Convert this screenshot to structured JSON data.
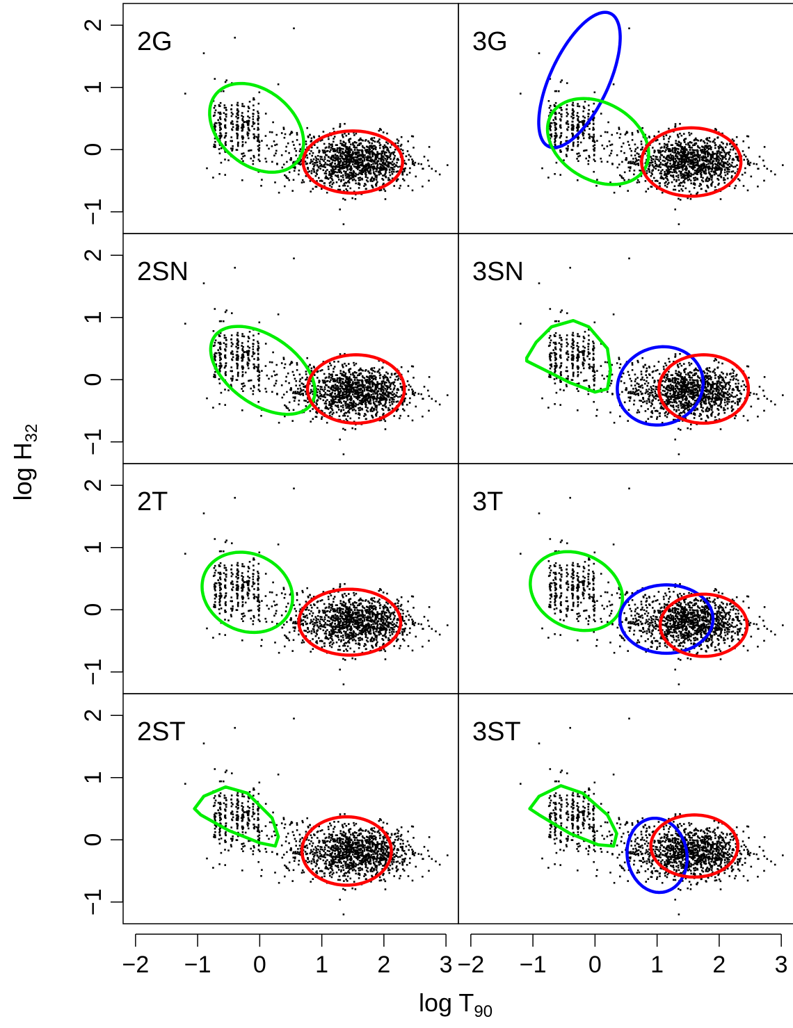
{
  "chart_data": {
    "type": "scatter",
    "title": "",
    "xlabel": {
      "main": "log T",
      "sub": "90"
    },
    "ylabel": {
      "main": "log H",
      "sub": "32"
    },
    "xlim": [
      -2.2,
      3.2
    ],
    "ylim": [
      -1.35,
      2.35
    ],
    "xticks": [
      -2,
      -1,
      0,
      1,
      2,
      3
    ],
    "yticks": [
      -1,
      0,
      1,
      2
    ],
    "xtick_labels": [
      "−2",
      "−1",
      "0",
      "1",
      "2",
      "3"
    ],
    "ytick_labels": [
      "−1",
      "0",
      "1",
      "2"
    ],
    "grid": false,
    "legend": "none",
    "colors": {
      "red": "#ff0000",
      "green": "#00ee00",
      "blue": "#0000ff",
      "points": "#000000"
    },
    "panels": [
      {
        "label": "2G",
        "col": 0,
        "row": 0,
        "components": [
          {
            "color": "green",
            "shape": "ellipse",
            "center": [
              -0.05,
              0.35
            ],
            "rx": 0.85,
            "ry": 0.6,
            "angle_deg": -40
          },
          {
            "color": "red",
            "shape": "ellipse",
            "center": [
              1.5,
              -0.2
            ],
            "rx": 0.8,
            "ry": 0.5,
            "angle_deg": 0
          }
        ]
      },
      {
        "label": "3G",
        "col": 1,
        "row": 0,
        "components": [
          {
            "color": "blue",
            "shape": "ellipse",
            "center": [
              -0.25,
              1.12
            ],
            "rx": 0.47,
            "ry": 1.18,
            "angle_deg": -25
          },
          {
            "color": "green",
            "shape": "ellipse",
            "center": [
              0.05,
              0.13
            ],
            "rx": 0.87,
            "ry": 0.62,
            "angle_deg": -30
          },
          {
            "color": "red",
            "shape": "ellipse",
            "center": [
              1.55,
              -0.2
            ],
            "rx": 0.8,
            "ry": 0.55,
            "angle_deg": 0
          }
        ]
      },
      {
        "label": "2SN",
        "col": 0,
        "row": 1,
        "components": [
          {
            "color": "green",
            "shape": "ellipse",
            "center": [
              0.05,
              0.15
            ],
            "rx": 0.95,
            "ry": 0.55,
            "angle_deg": -35
          },
          {
            "color": "red",
            "shape": "ellipse",
            "center": [
              1.55,
              -0.15
            ],
            "rx": 0.78,
            "ry": 0.55,
            "angle_deg": 0
          }
        ]
      },
      {
        "label": "3SN",
        "col": 1,
        "row": 1,
        "components": [
          {
            "color": "green",
            "shape": "path",
            "points": [
              [
                -1.1,
                0.35
              ],
              [
                -0.95,
                0.6
              ],
              [
                -0.7,
                0.85
              ],
              [
                -0.35,
                0.95
              ],
              [
                -0.1,
                0.85
              ],
              [
                0.2,
                0.5
              ],
              [
                0.25,
                0.15
              ],
              [
                0.2,
                -0.15
              ],
              [
                0.0,
                -0.2
              ],
              [
                -0.4,
                -0.05
              ],
              [
                -0.8,
                0.15
              ],
              [
                -1.1,
                0.3
              ]
            ]
          },
          {
            "color": "blue",
            "shape": "ellipse",
            "center": [
              1.05,
              -0.1
            ],
            "rx": 0.7,
            "ry": 0.62,
            "angle_deg": 20
          },
          {
            "color": "red",
            "shape": "ellipse",
            "center": [
              1.75,
              -0.15
            ],
            "rx": 0.72,
            "ry": 0.55,
            "angle_deg": 0
          }
        ]
      },
      {
        "label": "2T",
        "col": 0,
        "row": 2,
        "components": [
          {
            "color": "green",
            "shape": "ellipse",
            "center": [
              -0.2,
              0.28
            ],
            "rx": 0.75,
            "ry": 0.62,
            "angle_deg": -25
          },
          {
            "color": "red",
            "shape": "ellipse",
            "center": [
              1.45,
              -0.2
            ],
            "rx": 0.82,
            "ry": 0.53,
            "angle_deg": 0
          }
        ]
      },
      {
        "label": "3T",
        "col": 1,
        "row": 2,
        "components": [
          {
            "color": "green",
            "shape": "ellipse",
            "center": [
              -0.3,
              0.3
            ],
            "rx": 0.77,
            "ry": 0.6,
            "angle_deg": -25
          },
          {
            "color": "blue",
            "shape": "ellipse",
            "center": [
              1.15,
              -0.15
            ],
            "rx": 0.75,
            "ry": 0.55,
            "angle_deg": 0
          },
          {
            "color": "red",
            "shape": "ellipse",
            "center": [
              1.75,
              -0.25
            ],
            "rx": 0.7,
            "ry": 0.5,
            "angle_deg": 0
          }
        ]
      },
      {
        "label": "2ST",
        "col": 0,
        "row": 3,
        "components": [
          {
            "color": "green",
            "shape": "path",
            "points": [
              [
                -1.05,
                0.5
              ],
              [
                -0.9,
                0.7
              ],
              [
                -0.55,
                0.85
              ],
              [
                -0.2,
                0.75
              ],
              [
                0.2,
                0.35
              ],
              [
                0.3,
                0.05
              ],
              [
                0.25,
                -0.1
              ],
              [
                0.0,
                -0.05
              ],
              [
                -0.5,
                0.15
              ],
              [
                -0.95,
                0.4
              ],
              [
                -1.05,
                0.5
              ]
            ]
          },
          {
            "color": "red",
            "shape": "ellipse",
            "center": [
              1.4,
              -0.18
            ],
            "rx": 0.72,
            "ry": 0.55,
            "angle_deg": 0
          }
        ]
      },
      {
        "label": "3ST",
        "col": 1,
        "row": 3,
        "components": [
          {
            "color": "green",
            "shape": "path",
            "points": [
              [
                -1.05,
                0.5
              ],
              [
                -0.9,
                0.7
              ],
              [
                -0.55,
                0.87
              ],
              [
                -0.2,
                0.75
              ],
              [
                0.2,
                0.4
              ],
              [
                0.35,
                0.1
              ],
              [
                0.3,
                -0.1
              ],
              [
                0.05,
                -0.08
              ],
              [
                -0.4,
                0.1
              ],
              [
                -0.9,
                0.4
              ],
              [
                -1.05,
                0.5
              ]
            ]
          },
          {
            "color": "blue",
            "shape": "ellipse",
            "center": [
              1.0,
              -0.25
            ],
            "rx": 0.48,
            "ry": 0.6,
            "angle_deg": 10
          },
          {
            "color": "red",
            "shape": "ellipse",
            "center": [
              1.6,
              -0.1
            ],
            "rx": 0.7,
            "ry": 0.5,
            "angle_deg": 0
          }
        ]
      }
    ],
    "points_note_count": 1599
  }
}
